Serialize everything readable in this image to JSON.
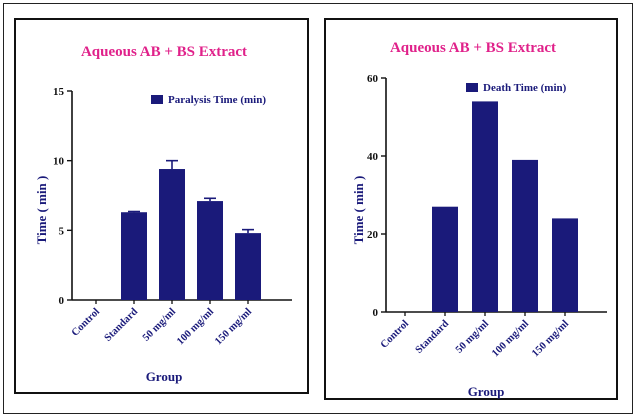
{
  "colors": {
    "bar": "#1a1a7a",
    "title": "#e0218a",
    "axis": "#1a1a7a"
  },
  "chart_data": [
    {
      "type": "bar",
      "title": "Aqueous AB + BS Extract",
      "xlabel": "Group",
      "ylabel": "Time ( min )",
      "categories": [
        "Control",
        "Standard",
        "50 mg/ml",
        "100 mg/ml",
        "150 mg/ml"
      ],
      "series": [
        {
          "name": "Paralysis Time (min)",
          "values": [
            0,
            6.3,
            9.4,
            7.1,
            4.8
          ],
          "errors": [
            0,
            0.05,
            0.6,
            0.2,
            0.25
          ]
        }
      ],
      "yticks": [
        0,
        5,
        10,
        15
      ],
      "ylim": [
        0,
        15
      ],
      "legend": "top-right",
      "grid": false
    },
    {
      "type": "bar",
      "title": "Aqueous AB + BS Extract",
      "xlabel": "Group",
      "ylabel": "Time ( min )",
      "categories": [
        "Control",
        "Standard",
        "50 mg/ml",
        "100 mg/ml",
        "150 mg/ml"
      ],
      "series": [
        {
          "name": "Death Time (min)",
          "values": [
            0,
            27,
            54,
            39,
            24
          ],
          "errors": [
            0,
            0,
            0,
            0,
            0
          ]
        }
      ],
      "yticks": [
        0,
        20,
        40,
        60
      ],
      "ylim": [
        0,
        60
      ],
      "legend": "top-right",
      "grid": false
    }
  ]
}
